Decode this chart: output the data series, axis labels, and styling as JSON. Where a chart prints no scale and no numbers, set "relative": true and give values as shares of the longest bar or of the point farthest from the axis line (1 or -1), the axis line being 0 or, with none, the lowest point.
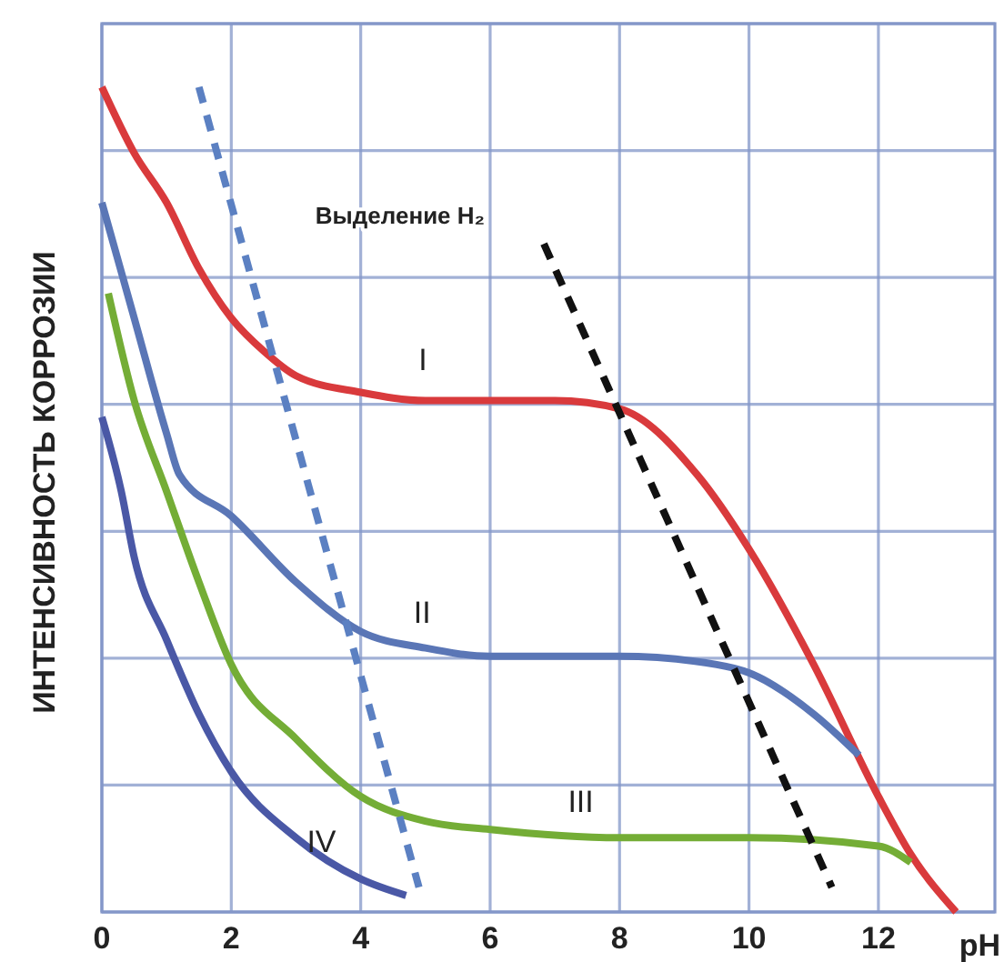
{
  "chart_data": {
    "type": "line",
    "relative": true,
    "xlabel": "pH",
    "ylabel": "ИНТЕНСИВНОСТЬ КОРРОЗИИ",
    "xlim": [
      0,
      13.8
    ],
    "xticks": [
      0,
      2,
      4,
      6,
      8,
      10,
      12
    ],
    "grid": true,
    "marker": "none",
    "line_style": "solid",
    "series": [
      {
        "name": "I",
        "color": "#d93a3c",
        "x": [
          0,
          0.5,
          1,
          1.5,
          2,
          2.5,
          3,
          4,
          5,
          6,
          7,
          8,
          9.2,
          10,
          11,
          12,
          12.5,
          13.2
        ],
        "values": [
          1.0,
          0.92,
          0.86,
          0.78,
          0.72,
          0.68,
          0.65,
          0.63,
          0.62,
          0.62,
          0.62,
          0.61,
          0.53,
          0.44,
          0.3,
          0.14,
          0.07,
          0
        ]
      },
      {
        "name": "II",
        "color": "#5a76b6",
        "x": [
          0,
          0.5,
          1,
          1.2,
          2,
          3,
          4,
          5,
          6,
          8,
          9.5,
          10,
          11,
          11.7
        ],
        "values": [
          0.86,
          0.72,
          0.58,
          0.53,
          0.48,
          0.4,
          0.34,
          0.32,
          0.31,
          0.31,
          0.3,
          0.29,
          0.24,
          0.19
        ]
      },
      {
        "name": "III",
        "color": "#74ad36",
        "x": [
          0.1,
          0.5,
          1,
          1.5,
          2,
          3,
          4,
          5,
          6,
          8,
          10,
          12,
          12.5
        ],
        "values": [
          0.75,
          0.62,
          0.51,
          0.4,
          0.3,
          0.21,
          0.14,
          0.11,
          0.1,
          0.09,
          0.09,
          0.08,
          0.06
        ]
      },
      {
        "name": "IV",
        "color": "#4a58a6",
        "x": [
          0,
          0.3,
          0.5,
          1,
          1.5,
          2,
          3,
          4,
          4.7
        ],
        "values": [
          0.6,
          0.51,
          0.43,
          0.33,
          0.24,
          0.17,
          0.09,
          0.04,
          0.02
        ]
      },
      {
        "color": "#5b80c2",
        "line_style": "dashed",
        "x": [
          1.5,
          4.9
        ],
        "values": [
          1.0,
          0.03
        ]
      },
      {
        "color": "#111111",
        "line_style": "dashed",
        "x": [
          6.83,
          11.28
        ],
        "values": [
          0.81,
          0.03
        ]
      }
    ],
    "annotations": [
      "Выделение H₂"
    ]
  }
}
